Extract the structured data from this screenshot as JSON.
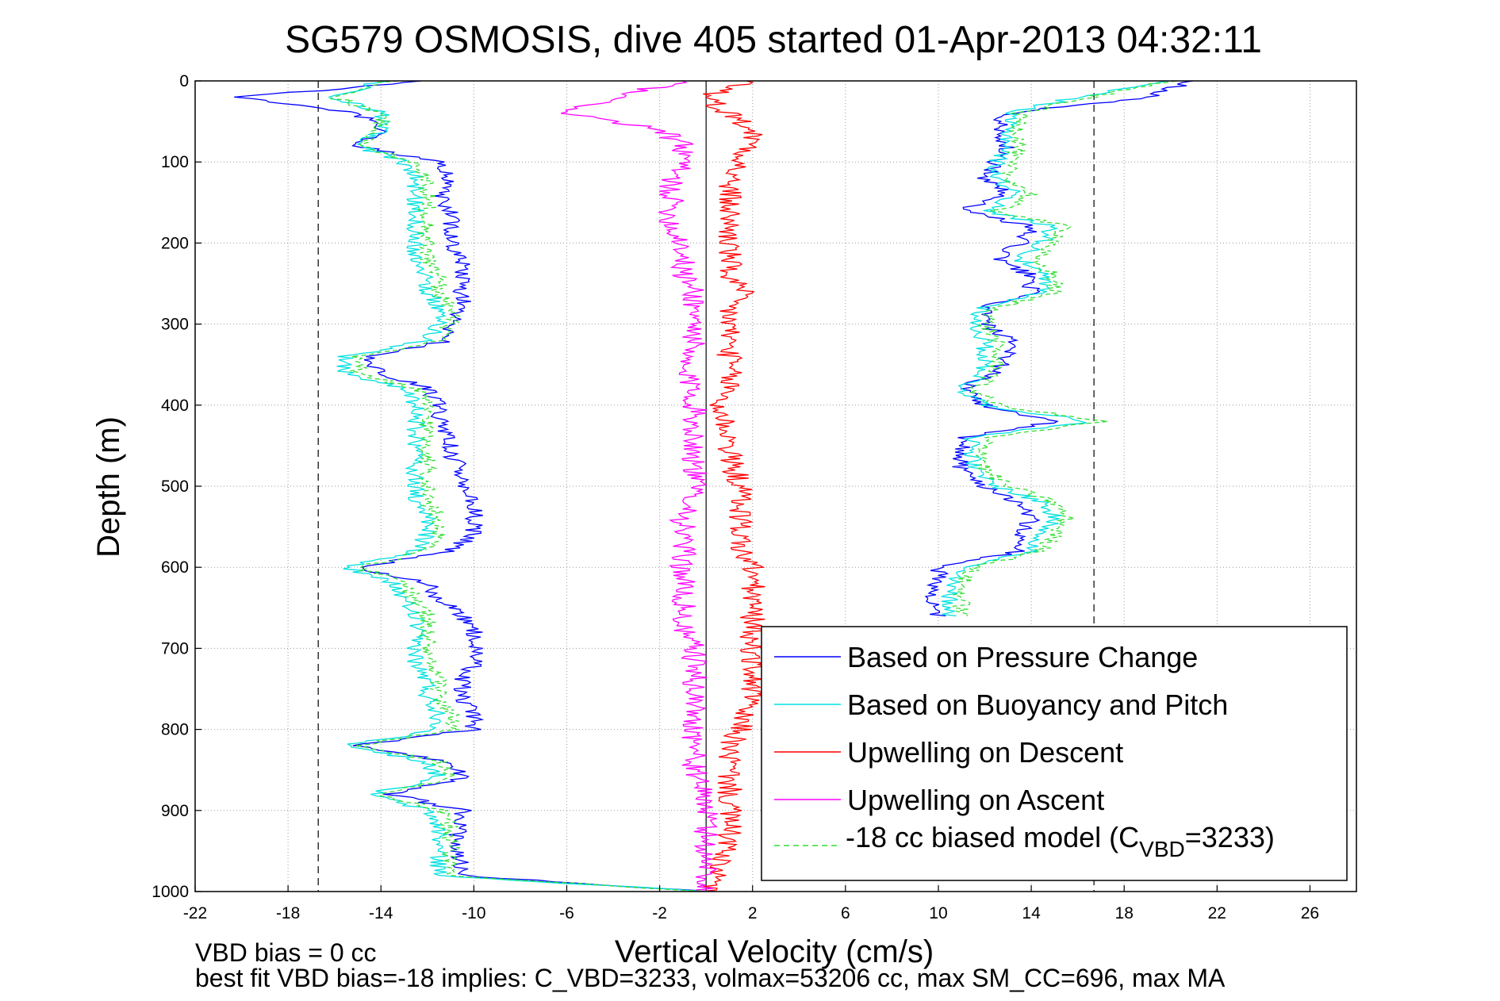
{
  "chart_data": {
    "type": "line",
    "title": "SG579 OSMOSIS, dive 405 started 01-Apr-2013 04:32:11",
    "xlabel": "Vertical Velocity (cm/s)",
    "ylabel": "Depth (m)",
    "xlim": [
      -22,
      28
    ],
    "ylim": [
      0,
      1000
    ],
    "y_reversed": true,
    "grid": true,
    "x_ticks": [
      -22,
      -18,
      -14,
      -10,
      -6,
      -2,
      2,
      6,
      10,
      14,
      18,
      22,
      26
    ],
    "y_ticks": [
      0,
      100,
      200,
      300,
      400,
      500,
      600,
      700,
      800,
      900,
      1000
    ],
    "vertical_reference_lines": [
      -16.7,
      0,
      16.7
    ],
    "legend_position": "bottom-right",
    "depth": [
      0,
      20,
      40,
      60,
      80,
      100,
      120,
      140,
      160,
      180,
      200,
      220,
      240,
      260,
      280,
      300,
      320,
      340,
      360,
      380,
      400,
      420,
      440,
      460,
      480,
      500,
      520,
      540,
      560,
      580,
      600,
      620,
      640,
      660,
      680,
      700,
      720,
      740,
      760,
      780,
      800,
      820,
      840,
      860,
      880,
      900,
      920,
      940,
      960,
      980,
      1000
    ],
    "series": [
      {
        "name": "Based on Pressure Change",
        "color": "#0000ff",
        "style": "solid",
        "descent": [
          -12,
          -20,
          -15,
          -14,
          -15,
          -11.5,
          -11,
          -11.5,
          -11,
          -11,
          -11,
          -10.5,
          -10.5,
          -10.5,
          -10.5,
          -11,
          -11,
          -14.5,
          -14,
          -12,
          -11.5,
          -11.5,
          -11,
          -11,
          -10.5,
          -10.5,
          -10,
          -10,
          -10,
          -11,
          -15,
          -12,
          -11.5,
          -10.5,
          -10,
          -10,
          -10,
          -10.5,
          -10.5,
          -10,
          -10,
          -15,
          -11,
          -10.5,
          -13.5,
          -10.5,
          -10.5,
          -11,
          -10.5,
          -10.5,
          0
        ],
        "ascent": [
          21,
          19,
          13,
          12.5,
          13,
          12.5,
          12,
          13,
          11,
          14,
          13.5,
          12.5,
          14,
          14,
          12,
          12,
          13,
          13,
          12.5,
          11,
          12,
          15,
          11,
          11,
          11,
          12,
          13.5,
          14,
          13.5,
          13.5,
          10,
          10,
          9.5,
          10
        ]
      },
      {
        "name": "Based on Buoyancy and Pitch",
        "color": "#00e0e0",
        "style": "solid",
        "descent": [
          -14,
          -16,
          -14,
          -14,
          -15,
          -13,
          -12.5,
          -12.5,
          -12.5,
          -12.5,
          -12.5,
          -12.5,
          -12,
          -12,
          -11.5,
          -11.5,
          -12,
          -15.5,
          -15.5,
          -13,
          -12.5,
          -12.5,
          -12.5,
          -12.5,
          -12.5,
          -12.5,
          -12.5,
          -12,
          -12,
          -12.5,
          -15.5,
          -13.5,
          -13,
          -12.5,
          -12.5,
          -12.5,
          -12.5,
          -12,
          -12,
          -11.5,
          -11.5,
          -15.5,
          -12,
          -11.5,
          -14.5,
          -12,
          -11.5,
          -11.5,
          -11.5,
          -11.5,
          0
        ],
        "ascent": [
          20,
          16,
          13,
          13,
          13,
          12.5,
          12.5,
          13.5,
          12,
          15,
          14.5,
          13.5,
          14.5,
          14.5,
          12,
          11.5,
          12,
          12,
          12,
          11,
          12,
          16.5,
          11.5,
          11.5,
          11.5,
          12.5,
          14.5,
          15,
          14.5,
          14,
          11,
          10.5,
          10.5,
          10.5
        ]
      },
      {
        "name": "Upwelling on Descent",
        "color": "#ff0000",
        "style": "solid",
        "values": [
          2,
          0,
          1,
          2,
          2,
          1.5,
          1,
          1,
          1,
          1,
          1,
          1,
          1,
          1.5,
          1,
          1,
          1,
          1,
          1,
          1,
          0.5,
          0.8,
          1,
          1,
          1.2,
          1.5,
          1.5,
          1.5,
          1.5,
          1.5,
          2,
          2,
          2,
          2,
          2,
          2,
          2,
          2,
          2,
          1.5,
          1.5,
          1,
          1,
          1,
          1,
          1,
          1,
          1,
          0.5,
          0.5,
          0
        ]
      },
      {
        "name": "Upwelling on Ascent",
        "color": "#ff00ff",
        "style": "solid",
        "values": [
          -1,
          -4,
          -6,
          -2,
          -1,
          -1,
          -1.5,
          -1.5,
          -1.5,
          -1.5,
          -1,
          -1,
          -1,
          -0.5,
          -0.5,
          -0.5,
          -0.5,
          -1,
          -1,
          -0.5,
          -0.5,
          -0.5,
          -0.5,
          -0.5,
          -0.5,
          -0.5,
          -0.5,
          -1,
          -1,
          -1,
          -1,
          -1,
          -1,
          -1,
          -1,
          -0.5,
          -0.5,
          -0.5,
          -0.5,
          -0.5,
          -0.5,
          -0.5,
          -0.5,
          -0.5,
          0,
          0,
          0,
          0,
          0,
          0,
          0
        ]
      },
      {
        "name": "-18 cc biased model (C_VBD=3233)",
        "legend_main": "-18 cc biased model (C",
        "legend_sub": "VBD",
        "legend_tail": "=3233)",
        "color": "#33dd33",
        "style": "dashed",
        "descent": [
          -13.5,
          -16,
          -14,
          -14,
          -15,
          -12.5,
          -12,
          -12,
          -12,
          -12,
          -12,
          -12,
          -11.5,
          -11.5,
          -11,
          -11,
          -11.5,
          -15,
          -15,
          -12.5,
          -12,
          -12,
          -12,
          -12,
          -12,
          -12,
          -12,
          -11.5,
          -11.5,
          -12,
          -15,
          -13,
          -12.5,
          -12,
          -12,
          -12,
          -12,
          -11.5,
          -11.5,
          -11,
          -11,
          -15,
          -11.5,
          -11,
          -14,
          -11.5,
          -11,
          -11,
          -11,
          -11,
          0
        ],
        "ascent": [
          20,
          16.5,
          13.5,
          13.5,
          13.5,
          13,
          13,
          14,
          12.5,
          15.5,
          15,
          14,
          15,
          15,
          12.5,
          12,
          12.5,
          12.5,
          12.5,
          11.5,
          12.5,
          17,
          12,
          12,
          12,
          13,
          15,
          15.5,
          15,
          14.5,
          11.5,
          11,
          11,
          11
        ]
      }
    ]
  },
  "footer": {
    "line1": "VBD bias = 0 cc",
    "line2": "best fit VBD bias=-18 implies: C_VBD=3233, volmax=53206 cc, max SM_CC=696, max MA"
  }
}
